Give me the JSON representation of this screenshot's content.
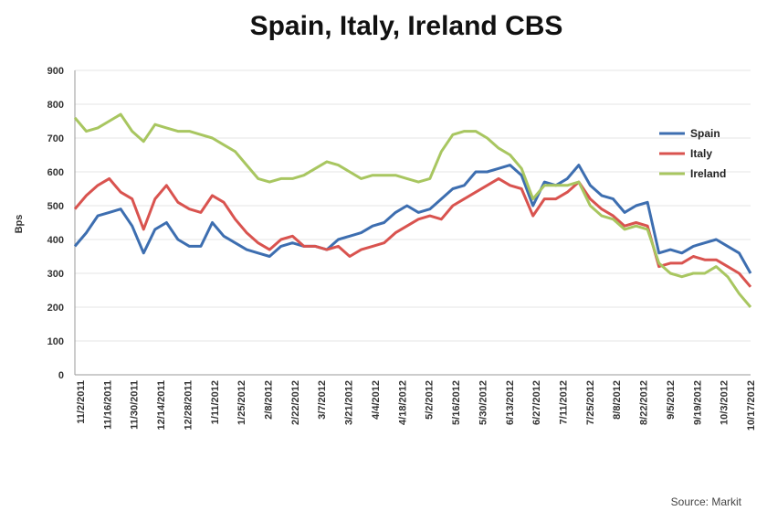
{
  "chart_data": {
    "type": "line",
    "title": "Spain, Italy, Ireland CBS",
    "ylabel": "Bps",
    "xlabel": "",
    "ylim": [
      0,
      900
    ],
    "yticks": [
      0,
      100,
      200,
      300,
      400,
      500,
      600,
      700,
      800,
      900
    ],
    "grid": true,
    "legend_position": "right",
    "source": "Source: Markit",
    "x_tick_labels": [
      "11/2/2011",
      "11/16/2011",
      "11/30/2011",
      "12/14/2011",
      "12/28/2011",
      "1/11/2012",
      "1/25/2012",
      "2/8/2012",
      "2/22/2012",
      "3/7/2012",
      "3/21/2012",
      "4/4/2012",
      "4/18/2012",
      "5/2/2012",
      "5/16/2012",
      "5/30/2012",
      "6/13/2012",
      "6/27/2012",
      "7/11/2012",
      "7/25/2012",
      "8/8/2012",
      "8/22/2012",
      "9/5/2012",
      "9/19/2012",
      "10/3/2012",
      "10/17/2012"
    ],
    "series": [
      {
        "name": "Spain",
        "color": "#3d6eb0",
        "values": [
          380,
          420,
          470,
          480,
          490,
          440,
          360,
          430,
          450,
          400,
          380,
          380,
          450,
          410,
          390,
          370,
          360,
          350,
          380,
          390,
          380,
          380,
          370,
          400,
          410,
          420,
          440,
          450,
          480,
          500,
          480,
          490,
          520,
          550,
          560,
          600,
          600,
          610,
          620,
          590,
          500,
          570,
          560,
          580,
          620,
          560,
          530,
          520,
          480,
          500,
          510,
          360,
          370,
          360,
          380,
          390,
          400,
          380,
          360,
          300
        ]
      },
      {
        "name": "Italy",
        "color": "#d9534f",
        "values": [
          490,
          530,
          560,
          580,
          540,
          520,
          430,
          520,
          560,
          510,
          490,
          480,
          530,
          510,
          460,
          420,
          390,
          370,
          400,
          410,
          380,
          380,
          370,
          380,
          350,
          370,
          380,
          390,
          420,
          440,
          460,
          470,
          460,
          500,
          520,
          540,
          560,
          580,
          560,
          550,
          470,
          520,
          520,
          540,
          570,
          520,
          490,
          470,
          440,
          450,
          440,
          320,
          330,
          330,
          350,
          340,
          340,
          320,
          300,
          260
        ]
      },
      {
        "name": "Ireland",
        "color": "#a8c660",
        "values": [
          760,
          720,
          730,
          750,
          770,
          720,
          690,
          740,
          730,
          720,
          720,
          710,
          700,
          680,
          660,
          620,
          580,
          570,
          580,
          580,
          590,
          610,
          630,
          620,
          600,
          580,
          590,
          590,
          590,
          580,
          570,
          580,
          660,
          710,
          720,
          720,
          700,
          670,
          650,
          610,
          520,
          560,
          560,
          560,
          570,
          500,
          470,
          460,
          430,
          440,
          430,
          330,
          300,
          290,
          300,
          300,
          320,
          290,
          240,
          200
        ]
      }
    ]
  }
}
